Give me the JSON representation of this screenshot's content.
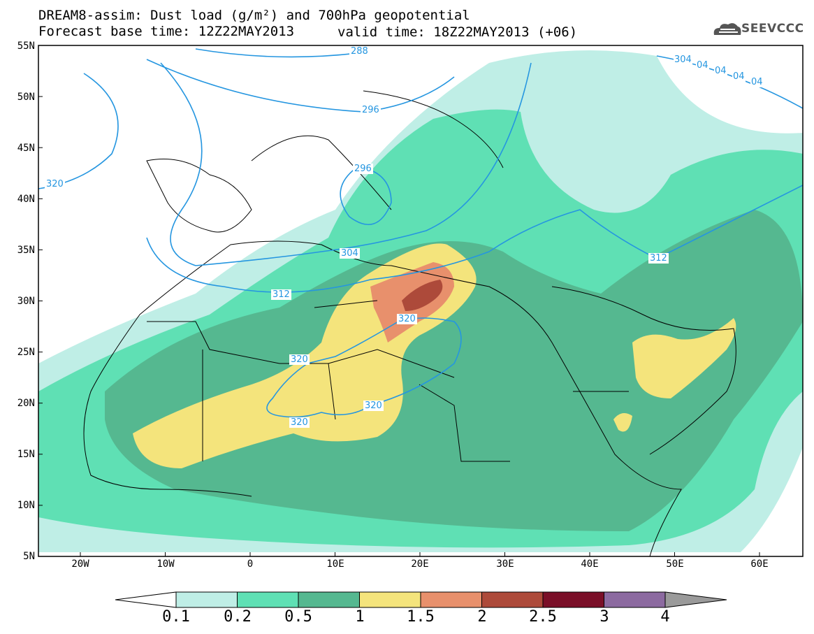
{
  "header": {
    "title": "DREAM8-assim: Dust load (g/m²) and 700hPa geopotential",
    "base_time": "Forecast base time: 12Z22MAY2013",
    "valid_time": "valid time: 18Z22MAY2013 (+06)"
  },
  "logo": {
    "text": "SEEVCCC",
    "icon": "cloud-icon"
  },
  "map": {
    "lat_labels": [
      "55N",
      "50N",
      "45N",
      "40N",
      "35N",
      "30N",
      "25N",
      "20N",
      "15N",
      "10N",
      "5N"
    ],
    "lon_labels": [
      "20W",
      "10W",
      "0",
      "10E",
      "20E",
      "30E",
      "40E",
      "50E",
      "60E"
    ],
    "contour_labels": [
      "288",
      "296",
      "296",
      "304",
      "312",
      "312",
      "320",
      "320",
      "320",
      "320",
      "320",
      "304",
      "04",
      "04",
      "04",
      "04"
    ]
  },
  "colorbar": {
    "labels": [
      "0.1",
      "0.2",
      "0.5",
      "1",
      "1.5",
      "2",
      "2.5",
      "3",
      "4"
    ],
    "colors": [
      "#bfeee6",
      "#5fe0b4",
      "#55b890",
      "#f4e47c",
      "#e8906c",
      "#ad4a3a",
      "#7a0f28",
      "#8c6aa0",
      "#9a9a9a"
    ]
  }
}
